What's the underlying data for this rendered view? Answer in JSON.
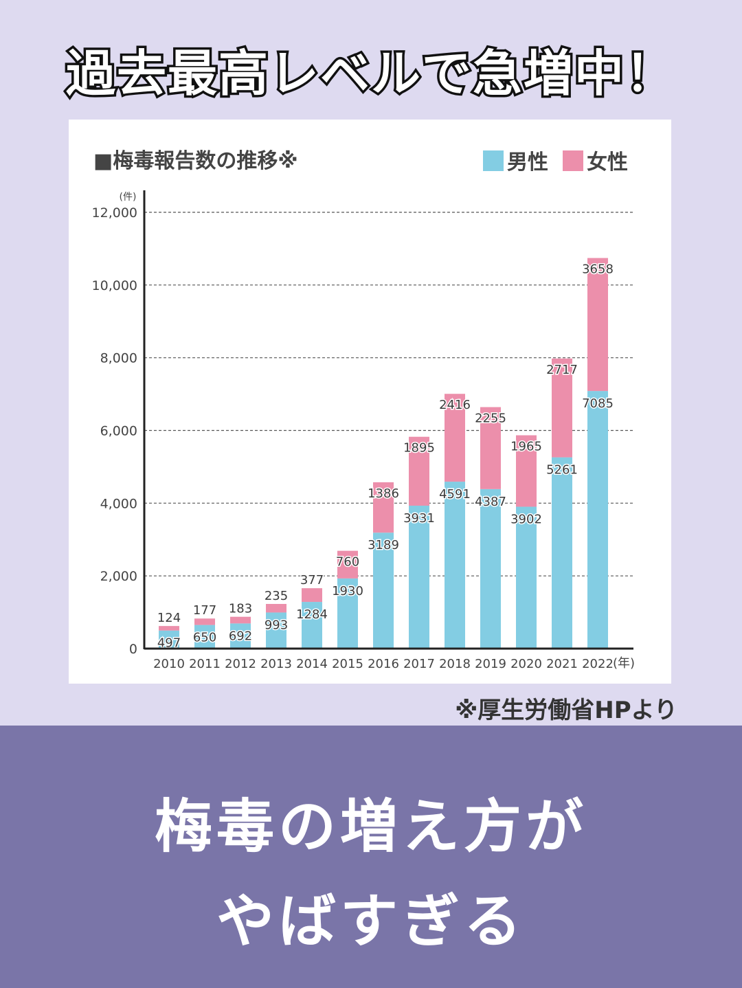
{
  "headline": "過去最高レベルで急増中！",
  "source_note": "※厚生労働省HPより",
  "banner": {
    "line1": "梅毒の増え方が",
    "line2": "やばすぎる"
  },
  "colors": {
    "male": "#83cde3",
    "female": "#ec8fab",
    "background": "#dedaf0",
    "banner": "#7a75a8"
  },
  "chart_data": {
    "type": "bar",
    "stacked": true,
    "title": "■梅毒報告数の推移※",
    "y_unit": "(件)",
    "x_unit": "(年)",
    "ylim": [
      0,
      12000
    ],
    "yticks": [
      0,
      2000,
      4000,
      6000,
      8000,
      10000,
      12000
    ],
    "ytick_labels": [
      "0",
      "2,000",
      "4,000",
      "6,000",
      "8,000",
      "10,000",
      "12,000"
    ],
    "grid": true,
    "legend_position": "top-right",
    "categories": [
      "2010",
      "2011",
      "2012",
      "2013",
      "2014",
      "2015",
      "2016",
      "2017",
      "2018",
      "2019",
      "2020",
      "2021",
      "2022"
    ],
    "series": [
      {
        "name": "男性",
        "color": "#83cde3",
        "values": [
          497,
          650,
          692,
          993,
          1284,
          1930,
          3189,
          3931,
          4591,
          4387,
          3902,
          5261,
          7085
        ]
      },
      {
        "name": "女性",
        "color": "#ec8fab",
        "values": [
          124,
          177,
          183,
          235,
          377,
          760,
          1386,
          1895,
          2416,
          2255,
          1965,
          2717,
          3658
        ]
      }
    ]
  }
}
